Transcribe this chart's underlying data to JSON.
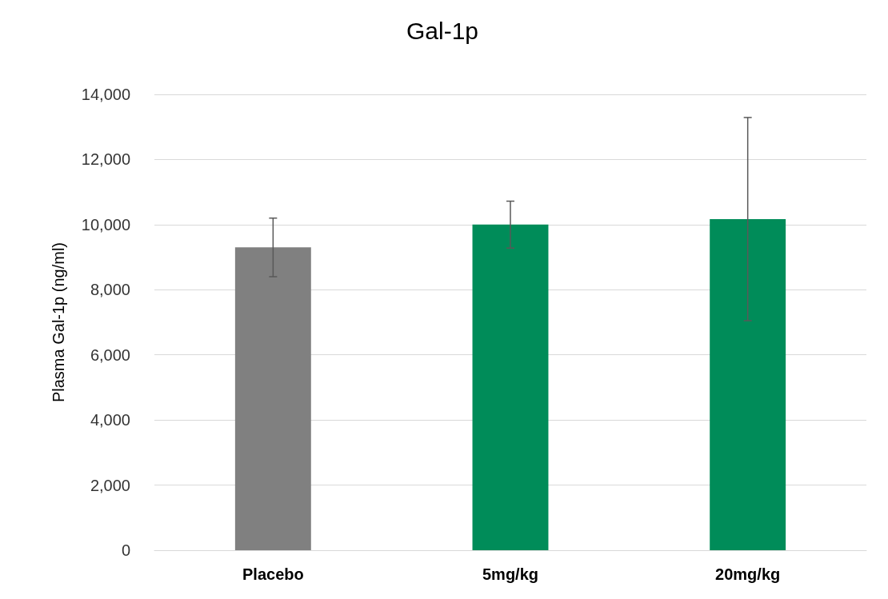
{
  "chart_data": {
    "type": "bar",
    "title": "Gal-1p",
    "ylabel": "Plasma Gal-1p (ng/ml)",
    "categories": [
      "Placebo",
      "5mg/kg",
      "20mg/kg"
    ],
    "values": [
      9300,
      10000,
      10170
    ],
    "colors": [
      "#808080",
      "#008c59",
      "#008c59"
    ],
    "errors": [
      900,
      720,
      3120
    ],
    "ylim": [
      0,
      14000
    ],
    "yticks": [
      0,
      {
        "value": 2000,
        "label": "2,000"
      },
      {
        "value": 4000,
        "label": "4,000"
      },
      {
        "value": 6000,
        "label": "6,000"
      },
      {
        "value": 8000,
        "label": "8,000"
      },
      {
        "value": 10000,
        "label": "10,000"
      },
      {
        "value": 12000,
        "label": "12,000"
      },
      {
        "value": 14000,
        "label": "14,000"
      }
    ],
    "grid": "y"
  }
}
